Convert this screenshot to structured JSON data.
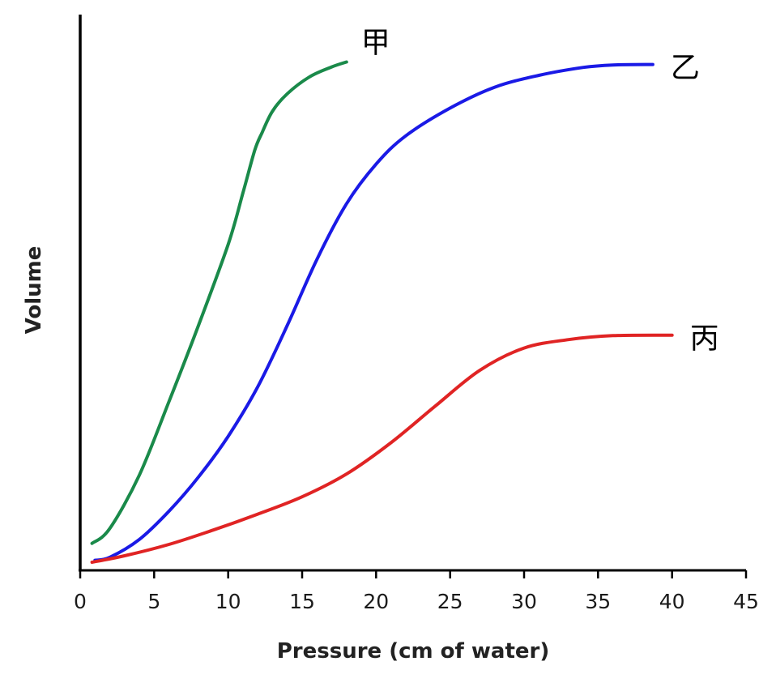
{
  "chart_data": {
    "type": "line",
    "title": "",
    "xlabel": "Pressure (cm of water)",
    "ylabel": "Volume",
    "xlim": [
      0,
      45
    ],
    "ylim": [
      0,
      100
    ],
    "x_ticks": [
      "0",
      "5",
      "10",
      "15",
      "20",
      "25",
      "30",
      "35",
      "40",
      "45"
    ],
    "y_ticks": [],
    "grid": false,
    "legend": "none",
    "series": [
      {
        "name": "甲",
        "color": "#1a8a4a",
        "points": [
          [
            0.8,
            3.8
          ],
          [
            2,
            6.8
          ],
          [
            4,
            17.6
          ],
          [
            6,
            32.4
          ],
          [
            8,
            47.8
          ],
          [
            10,
            64.1
          ],
          [
            11,
            74.5
          ],
          [
            11.8,
            83.1
          ],
          [
            12.3,
            86.7
          ],
          [
            13,
            91
          ],
          [
            14,
            94.5
          ],
          [
            15.5,
            97.9
          ],
          [
            17,
            99.9
          ],
          [
            18,
            100.9
          ]
        ]
      },
      {
        "name": "乙",
        "color": "#1a1ae6",
        "points": [
          [
            1,
            0.4
          ],
          [
            2,
            1
          ],
          [
            4,
            4.6
          ],
          [
            6,
            10.3
          ],
          [
            8,
            17.2
          ],
          [
            10,
            25.4
          ],
          [
            12,
            35.4
          ],
          [
            14,
            47.8
          ],
          [
            16,
            61.1
          ],
          [
            18,
            72.3
          ],
          [
            20,
            80.3
          ],
          [
            22,
            86
          ],
          [
            25,
            91.6
          ],
          [
            28,
            95.8
          ],
          [
            31,
            98.2
          ],
          [
            34,
            99.8
          ],
          [
            36,
            100.3
          ],
          [
            38.7,
            100.4
          ]
        ]
      },
      {
        "name": "丙",
        "color": "#e02424",
        "points": [
          [
            0.8,
            0
          ],
          [
            3,
            1.3
          ],
          [
            6,
            3.6
          ],
          [
            9,
            6.5
          ],
          [
            12,
            9.7
          ],
          [
            15,
            13.2
          ],
          [
            18,
            17.8
          ],
          [
            21,
            24.1
          ],
          [
            24,
            31.5
          ],
          [
            27,
            38.7
          ],
          [
            30,
            43.2
          ],
          [
            33,
            44.9
          ],
          [
            36,
            45.7
          ],
          [
            40,
            45.8
          ]
        ]
      }
    ]
  }
}
